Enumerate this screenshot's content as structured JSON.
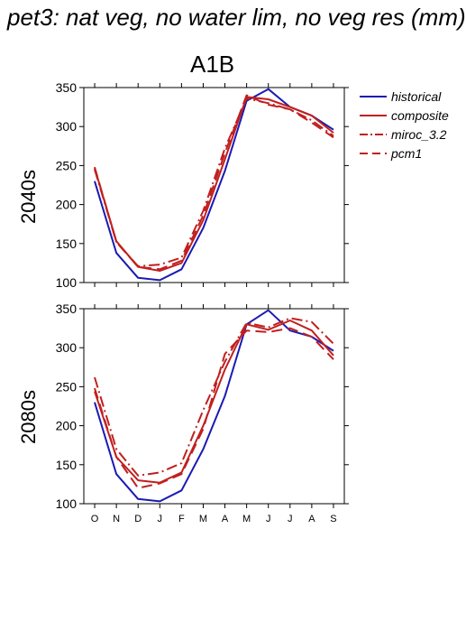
{
  "title": "pet3: nat veg, no water lim, no veg res (mm)",
  "scenario": "A1B",
  "colors": {
    "historical": "#1a1ab4",
    "model": "#c02020"
  },
  "legend": [
    {
      "name": "historical",
      "color": "#1a1ab4",
      "dash": "solid"
    },
    {
      "name": "composite",
      "color": "#c02020",
      "dash": "solid"
    },
    {
      "name": "miroc_3.2",
      "color": "#c02020",
      "dash": "dashdot"
    },
    {
      "name": "pcm1",
      "color": "#c02020",
      "dash": "dashed"
    }
  ],
  "chart_data": [
    {
      "type": "line",
      "panel_label": "2040s",
      "categories": [
        "O",
        "N",
        "D",
        "J",
        "F",
        "M",
        "A",
        "M",
        "J",
        "J",
        "A",
        "S"
      ],
      "ylim": [
        100,
        350
      ],
      "yticks": [
        100,
        150,
        200,
        250,
        300,
        350
      ],
      "show_xtick_labels": false,
      "series": [
        {
          "name": "historical",
          "values": [
            230,
            138,
            106,
            103,
            117,
            170,
            243,
            333,
            348,
            325,
            314,
            296
          ]
        },
        {
          "name": "composite",
          "values": [
            247,
            153,
            120,
            115,
            125,
            180,
            258,
            338,
            335,
            325,
            314,
            292
          ]
        },
        {
          "name": "miroc_3.2",
          "values": [
            245,
            152,
            121,
            123,
            132,
            192,
            272,
            336,
            330,
            322,
            308,
            288
          ]
        },
        {
          "name": "pcm1",
          "values": [
            248,
            152,
            120,
            117,
            128,
            186,
            266,
            340,
            328,
            322,
            305,
            286
          ]
        }
      ]
    },
    {
      "type": "line",
      "panel_label": "2080s",
      "categories": [
        "O",
        "N",
        "D",
        "J",
        "F",
        "M",
        "A",
        "M",
        "J",
        "J",
        "A",
        "S"
      ],
      "ylim": [
        100,
        350
      ],
      "yticks": [
        100,
        150,
        200,
        250,
        300,
        350
      ],
      "show_xtick_labels": true,
      "series": [
        {
          "name": "historical",
          "values": [
            230,
            138,
            106,
            103,
            117,
            170,
            238,
            330,
            348,
            322,
            314,
            296
          ]
        },
        {
          "name": "composite",
          "values": [
            244,
            160,
            130,
            127,
            140,
            200,
            272,
            330,
            323,
            335,
            322,
            290
          ]
        },
        {
          "name": "miroc_3.2",
          "values": [
            262,
            170,
            136,
            140,
            152,
            220,
            282,
            332,
            326,
            338,
            333,
            305
          ]
        },
        {
          "name": "pcm1",
          "values": [
            248,
            160,
            120,
            126,
            138,
            196,
            292,
            322,
            320,
            325,
            314,
            285
          ]
        }
      ]
    }
  ]
}
